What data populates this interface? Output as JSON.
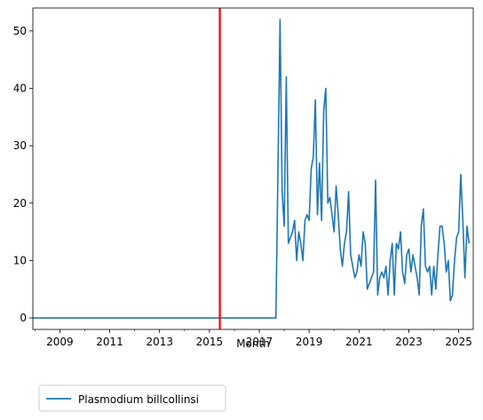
{
  "chart_data": {
    "type": "line",
    "title": "",
    "xlabel": "Month",
    "ylabel": "",
    "xlim": [
      "2007-12",
      "2025-08"
    ],
    "ylim": [
      -2,
      54
    ],
    "x_ticks": [
      "2009",
      "2011",
      "2013",
      "2015",
      "2017",
      "2019",
      "2021",
      "2023",
      "2025"
    ],
    "y_ticks": [
      0,
      10,
      20,
      30,
      40,
      50
    ],
    "grid": false,
    "legend_position": "below",
    "reference_line": {
      "x": "2015-06",
      "color": "#ff0000"
    },
    "series": [
      {
        "name": "Plasmodium billcollinsi",
        "color": "#1f77b4",
        "points": [
          [
            "2007-12",
            0
          ],
          [
            "2017-09",
            0
          ],
          [
            "2017-11",
            52
          ],
          [
            "2017-12",
            22
          ],
          [
            "2018-01",
            16
          ],
          [
            "2018-02",
            42
          ],
          [
            "2018-03",
            13
          ],
          [
            "2018-04",
            14
          ],
          [
            "2018-05",
            15
          ],
          [
            "2018-06",
            17
          ],
          [
            "2018-07",
            10
          ],
          [
            "2018-08",
            15
          ],
          [
            "2018-09",
            13
          ],
          [
            "2018-10",
            10
          ],
          [
            "2018-11",
            17
          ],
          [
            "2018-12",
            18
          ],
          [
            "2019-01",
            17
          ],
          [
            "2019-02",
            26
          ],
          [
            "2019-03",
            28
          ],
          [
            "2019-04",
            38
          ],
          [
            "2019-05",
            18
          ],
          [
            "2019-06",
            27
          ],
          [
            "2019-07",
            17
          ],
          [
            "2019-08",
            36
          ],
          [
            "2019-09",
            40
          ],
          [
            "2019-10",
            20
          ],
          [
            "2019-11",
            21
          ],
          [
            "2019-12",
            18
          ],
          [
            "2020-01",
            15
          ],
          [
            "2020-02",
            23
          ],
          [
            "2020-03",
            18
          ],
          [
            "2020-04",
            12
          ],
          [
            "2020-05",
            9
          ],
          [
            "2020-06",
            13
          ],
          [
            "2020-07",
            15
          ],
          [
            "2020-08",
            22
          ],
          [
            "2020-09",
            11
          ],
          [
            "2020-10",
            9
          ],
          [
            "2020-11",
            7
          ],
          [
            "2020-12",
            8
          ],
          [
            "2021-01",
            11
          ],
          [
            "2021-02",
            9
          ],
          [
            "2021-03",
            15
          ],
          [
            "2021-04",
            13
          ],
          [
            "2021-05",
            5
          ],
          [
            "2021-06",
            6
          ],
          [
            "2021-07",
            7
          ],
          [
            "2021-08",
            8
          ],
          [
            "2021-09",
            24
          ],
          [
            "2021-10",
            4
          ],
          [
            "2021-11",
            7
          ],
          [
            "2021-12",
            8
          ],
          [
            "2022-01",
            7
          ],
          [
            "2022-02",
            9
          ],
          [
            "2022-03",
            4
          ],
          [
            "2022-04",
            10
          ],
          [
            "2022-05",
            13
          ],
          [
            "2022-06",
            4
          ],
          [
            "2022-07",
            13
          ],
          [
            "2022-08",
            12
          ],
          [
            "2022-09",
            15
          ],
          [
            "2022-10",
            8
          ],
          [
            "2022-11",
            6
          ],
          [
            "2022-12",
            11
          ],
          [
            "2023-01",
            12
          ],
          [
            "2023-02",
            8
          ],
          [
            "2023-03",
            11
          ],
          [
            "2023-04",
            9
          ],
          [
            "2023-05",
            7
          ],
          [
            "2023-06",
            4
          ],
          [
            "2023-07",
            16
          ],
          [
            "2023-08",
            19
          ],
          [
            "2023-09",
            9
          ],
          [
            "2023-10",
            8
          ],
          [
            "2023-11",
            9
          ],
          [
            "2023-12",
            4
          ],
          [
            "2024-01",
            9
          ],
          [
            "2024-02",
            5
          ],
          [
            "2024-03",
            11
          ],
          [
            "2024-04",
            16
          ],
          [
            "2024-05",
            16
          ],
          [
            "2024-06",
            13
          ],
          [
            "2024-07",
            8
          ],
          [
            "2024-08",
            10
          ],
          [
            "2024-09",
            3
          ],
          [
            "2024-10",
            4
          ],
          [
            "2024-11",
            10
          ],
          [
            "2024-12",
            14
          ],
          [
            "2025-01",
            15
          ],
          [
            "2025-02",
            25
          ],
          [
            "2025-03",
            17
          ],
          [
            "2025-04",
            7
          ],
          [
            "2025-05",
            16
          ],
          [
            "2025-06",
            13
          ]
        ]
      }
    ]
  }
}
